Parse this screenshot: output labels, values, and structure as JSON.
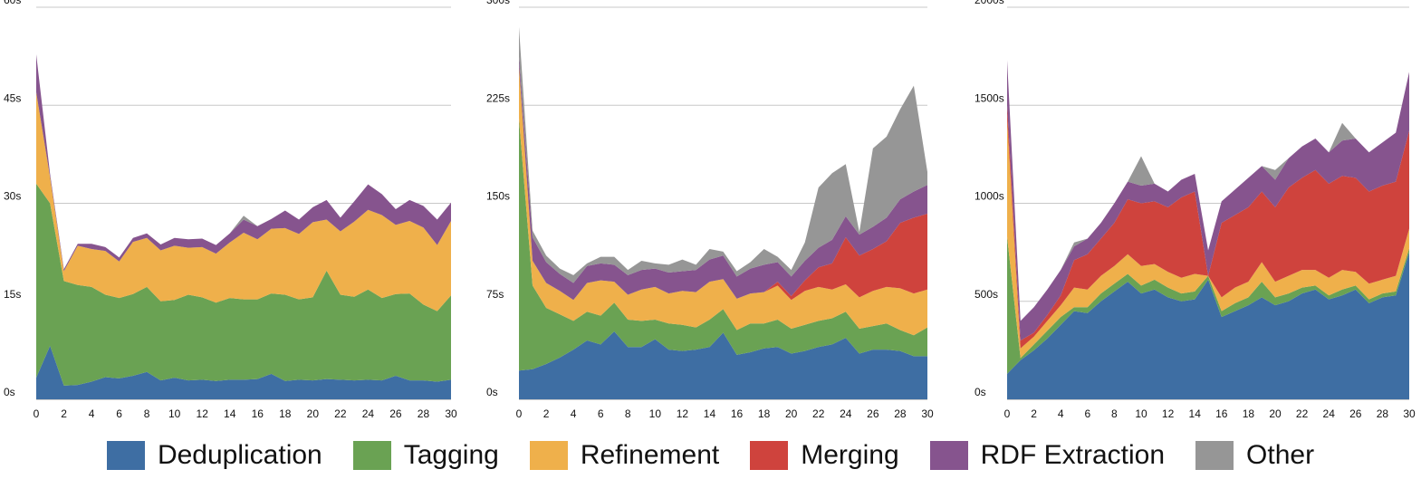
{
  "series_meta": [
    {
      "name": "Deduplication",
      "color": "#3e6ea3"
    },
    {
      "name": "Tagging",
      "color": "#6aa253"
    },
    {
      "name": "Refinement",
      "color": "#efb04b"
    },
    {
      "name": "Merging",
      "color": "#cf433d"
    },
    {
      "name": "RDF Extraction",
      "color": "#86548e"
    },
    {
      "name": "Other",
      "color": "#969696"
    }
  ],
  "chart_data": [
    {
      "type": "area",
      "stacked": true,
      "x": [
        0,
        1,
        2,
        3,
        4,
        5,
        6,
        7,
        8,
        9,
        10,
        11,
        12,
        13,
        14,
        15,
        16,
        17,
        18,
        19,
        20,
        21,
        22,
        23,
        24,
        25,
        26,
        27,
        28,
        29,
        30
      ],
      "xticks": [
        "0",
        "2",
        "4",
        "6",
        "8",
        "10",
        "12",
        "14",
        "16",
        "18",
        "20",
        "22",
        "24",
        "26",
        "28",
        "30"
      ],
      "ylim": [
        0,
        60
      ],
      "yticks": [
        "0s",
        "15s",
        "30s",
        "45s",
        "60s"
      ],
      "grid": true,
      "series": [
        {
          "name": "Deduplication",
          "values": [
            3.3,
            8.2,
            2.1,
            2.2,
            2.7,
            3.4,
            3.2,
            3.6,
            4.2,
            2.9,
            3.3,
            2.9,
            3.0,
            2.8,
            3.0,
            3.0,
            3.1,
            3.9,
            2.8,
            3.0,
            2.9,
            3.1,
            3.0,
            2.9,
            3.0,
            2.9,
            3.6,
            2.9,
            2.9,
            2.7,
            3.0
          ]
        },
        {
          "name": "Tagging",
          "values": [
            29.7,
            21.8,
            16.0,
            15.3,
            14.5,
            12.6,
            12.3,
            12.5,
            13.0,
            12.1,
            11.9,
            13.1,
            12.6,
            12.0,
            12.5,
            12.3,
            12.2,
            12.3,
            13.2,
            12.3,
            12.7,
            16.6,
            13.0,
            12.8,
            13.8,
            12.6,
            12.5,
            13.3,
            11.6,
            10.8,
            12.9
          ]
        },
        {
          "name": "Refinement",
          "values": [
            14.0,
            4.0,
            1.5,
            6.0,
            5.8,
            6.7,
            5.6,
            8.0,
            7.5,
            7.8,
            8.3,
            7.2,
            7.7,
            7.5,
            8.5,
            10.2,
            9.2,
            9.9,
            10.2,
            10.0,
            11.5,
            7.8,
            9.7,
            11.5,
            12.2,
            12.7,
            10.6,
            11.1,
            11.8,
            10.1,
            11.4
          ]
        },
        {
          "name": "Merging",
          "values": [
            0,
            0,
            0,
            0,
            0,
            0,
            0,
            0,
            0,
            0,
            0,
            0,
            0,
            0,
            0,
            0,
            0,
            0,
            0,
            0,
            0,
            0,
            0,
            0,
            0,
            0,
            0,
            0,
            0,
            0,
            0
          ]
        },
        {
          "name": "RDF Extraction",
          "values": [
            5.8,
            0.5,
            0.3,
            0.3,
            0.8,
            0.6,
            0.6,
            0.6,
            0.7,
            0.9,
            1.2,
            1.3,
            1.3,
            1.3,
            1.4,
            2.0,
            2.0,
            1.5,
            2.7,
            2.2,
            2.3,
            3.0,
            2.1,
            3.1,
            3.9,
            3.2,
            2.4,
            3.2,
            3.3,
            3.9,
            2.8
          ]
        },
        {
          "name": "Other",
          "values": [
            0,
            0,
            0,
            0,
            0,
            0,
            0,
            0,
            0,
            0,
            0,
            0,
            0,
            0,
            0,
            0.6,
            0,
            0,
            0,
            0,
            0,
            0,
            0,
            0,
            0,
            0,
            0,
            0,
            0,
            0,
            0
          ]
        }
      ]
    },
    {
      "type": "area",
      "stacked": true,
      "x": [
        0,
        1,
        2,
        3,
        4,
        5,
        6,
        7,
        8,
        9,
        10,
        11,
        12,
        13,
        14,
        15,
        16,
        17,
        18,
        19,
        20,
        21,
        22,
        23,
        24,
        25,
        26,
        27,
        28,
        29,
        30
      ],
      "xticks": [
        "0",
        "2",
        "4",
        "6",
        "8",
        "10",
        "12",
        "14",
        "16",
        "18",
        "20",
        "22",
        "24",
        "26",
        "28",
        "30"
      ],
      "ylim": [
        0,
        300
      ],
      "yticks": [
        "0s",
        "75s",
        "150s",
        "225s",
        "300s"
      ],
      "grid": true,
      "series": [
        {
          "name": "Deduplication",
          "values": [
            22,
            23,
            27,
            32,
            38,
            45,
            42,
            52,
            40,
            40,
            46,
            38,
            37,
            38,
            40,
            51,
            34,
            36,
            39,
            40,
            35,
            37,
            40,
            42,
            47,
            35,
            38,
            38,
            37,
            33,
            33
          ]
        },
        {
          "name": "Tagging",
          "values": [
            193,
            64,
            43,
            33,
            22,
            22,
            22,
            22,
            21,
            20,
            15,
            20,
            20,
            17,
            21,
            18,
            19,
            22,
            19,
            21,
            19,
            20,
            20,
            20,
            20,
            19,
            18,
            20,
            16,
            16,
            22
          ]
        },
        {
          "name": "Refinement",
          "values": [
            40,
            19,
            19,
            18,
            16,
            22,
            27,
            16,
            19,
            24,
            25,
            23,
            26,
            27,
            29,
            23,
            24,
            23,
            24,
            26,
            22,
            26,
            26,
            22,
            21,
            24,
            27,
            28,
            32,
            32,
            29
          ]
        },
        {
          "name": "Merging",
          "values": [
            0,
            0,
            0,
            0,
            0,
            0,
            0,
            0,
            0,
            0,
            0,
            0,
            0,
            0,
            0,
            0,
            0,
            0,
            0,
            3,
            3,
            8,
            15,
            20,
            36,
            32,
            32,
            35,
            50,
            58,
            58
          ]
        },
        {
          "name": "RDF Extraction",
          "values": [
            7,
            18,
            16,
            13,
            13,
            13,
            13,
            13,
            15,
            15,
            14,
            16,
            15,
            17,
            17,
            18,
            17,
            19,
            21,
            15,
            15,
            15,
            15,
            18,
            16,
            16,
            17,
            18,
            18,
            20,
            22
          ]
        },
        {
          "name": "Other",
          "values": [
            23,
            5,
            5,
            4,
            6,
            2,
            5,
            6,
            4,
            7,
            4,
            6,
            9,
            4,
            8,
            3,
            4,
            5,
            12,
            4,
            5,
            14,
            46,
            51,
            40,
            2,
            60,
            62,
            69,
            81,
            10
          ]
        }
      ]
    },
    {
      "type": "area",
      "stacked": true,
      "x": [
        0,
        1,
        2,
        3,
        4,
        5,
        6,
        7,
        8,
        9,
        10,
        11,
        12,
        13,
        14,
        15,
        16,
        17,
        18,
        19,
        20,
        21,
        22,
        23,
        24,
        25,
        26,
        27,
        28,
        29,
        30
      ],
      "xticks": [
        "0",
        "2",
        "4",
        "6",
        "8",
        "10",
        "12",
        "14",
        "16",
        "18",
        "20",
        "22",
        "24",
        "26",
        "28",
        "30"
      ],
      "ylim": [
        0,
        2000
      ],
      "yticks": [
        "0s",
        "500s",
        "1000s",
        "1500s",
        "2000s"
      ],
      "grid": true,
      "series": [
        {
          "name": "Deduplication",
          "values": [
            130,
            200,
            250,
            310,
            380,
            450,
            440,
            500,
            550,
            600,
            540,
            560,
            520,
            500,
            510,
            610,
            420,
            450,
            480,
            520,
            480,
            500,
            540,
            560,
            510,
            530,
            560,
            490,
            520,
            530,
            750
          ]
        },
        {
          "name": "Tagging",
          "values": [
            700,
            10,
            30,
            40,
            40,
            20,
            30,
            40,
            40,
            40,
            40,
            50,
            50,
            40,
            40,
            20,
            30,
            40,
            40,
            80,
            40,
            40,
            30,
            20,
            20,
            30,
            20,
            20,
            20,
            20,
            20
          ]
        },
        {
          "name": "Refinement",
          "values": [
            600,
            50,
            40,
            50,
            60,
            100,
            90,
            90,
            90,
            100,
            100,
            80,
            80,
            80,
            90,
            0,
            70,
            80,
            80,
            100,
            80,
            90,
            90,
            80,
            90,
            100,
            70,
            80,
            70,
            80,
            100
          ]
        },
        {
          "name": "Merging",
          "values": [
            70,
            40,
            20,
            30,
            50,
            140,
            180,
            190,
            220,
            280,
            320,
            320,
            330,
            410,
            420,
            0,
            380,
            370,
            380,
            360,
            380,
            450,
            470,
            510,
            480,
            480,
            480,
            470,
            480,
            480,
            500
          ]
        },
        {
          "name": "RDF Extraction",
          "values": [
            230,
            100,
            130,
            130,
            130,
            70,
            80,
            80,
            100,
            90,
            90,
            90,
            80,
            90,
            90,
            130,
            110,
            130,
            150,
            130,
            140,
            150,
            160,
            160,
            160,
            180,
            200,
            200,
            220,
            250,
            300
          ]
        },
        {
          "name": "Other",
          "values": [
            0,
            0,
            0,
            0,
            0,
            20,
            0,
            0,
            0,
            0,
            150,
            0,
            0,
            0,
            0,
            0,
            0,
            0,
            0,
            0,
            50,
            0,
            0,
            0,
            0,
            90,
            0,
            0,
            0,
            0,
            0
          ]
        }
      ]
    }
  ]
}
